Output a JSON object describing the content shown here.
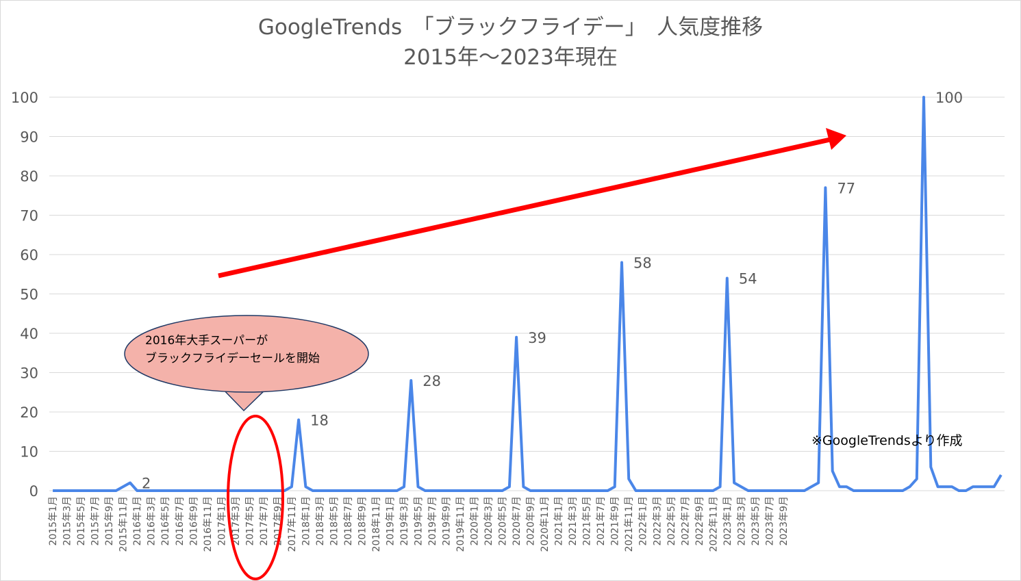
{
  "chart_data": {
    "type": "line",
    "title": "GoogleTrends　「ブラックフライデー」　人気度推移",
    "subtitle": "2015年〜2023年現在",
    "xlabel": "",
    "ylabel": "",
    "ylim": [
      0,
      100
    ],
    "y_ticks": [
      "0",
      "10",
      "20",
      "30",
      "40",
      "50",
      "60",
      "70",
      "80",
      "90",
      "100"
    ],
    "grid": true,
    "legend": "none",
    "x_tick_labels": [
      "2015年1月",
      "2015年3月",
      "2015年5月",
      "2015年7月",
      "2015年9月",
      "2015年11月",
      "2016年1月",
      "2016年3月",
      "2016年5月",
      "2016年7月",
      "2016年9月",
      "2016年11月",
      "2017年1月",
      "2017年3月",
      "2017年5月",
      "2017年7月",
      "2017年9月",
      "2017年11月",
      "2018年1月",
      "2018年3月",
      "2018年5月",
      "2018年7月",
      "2018年9月",
      "2018年11月",
      "2019年1月",
      "2019年3月",
      "2019年5月",
      "2019年7月",
      "2019年9月",
      "2019年11月",
      "2020年1月",
      "2020年3月",
      "2020年5月",
      "2020年7月",
      "2020年9月",
      "2020年11月",
      "2021年1月",
      "2021年3月",
      "2021年5月",
      "2021年7月",
      "2021年9月",
      "2021年11月",
      "2022年1月",
      "2022年3月",
      "2022年5月",
      "2022年7月",
      "2022年9月",
      "2022年11月",
      "2023年1月",
      "2023年3月",
      "2023年5月",
      "2023年7月",
      "2023年9月"
    ],
    "series": [
      {
        "values": [
          0,
          0,
          0,
          0,
          0,
          0,
          0,
          0,
          0,
          0,
          1,
          2,
          0,
          0,
          0,
          0,
          0,
          0,
          0,
          0,
          0,
          0,
          0,
          0,
          0,
          0,
          0,
          0,
          0,
          0,
          0,
          0,
          0,
          0,
          1,
          18,
          1,
          0,
          0,
          0,
          0,
          0,
          0,
          0,
          0,
          0,
          0,
          0,
          0,
          0,
          1,
          28,
          1,
          0,
          0,
          0,
          0,
          0,
          0,
          0,
          0,
          0,
          0,
          0,
          0,
          1,
          39,
          1,
          0,
          0,
          0,
          0,
          0,
          0,
          0,
          0,
          0,
          0,
          0,
          0,
          1,
          58,
          3,
          0,
          0,
          0,
          0,
          0,
          0,
          0,
          0,
          0,
          0,
          0,
          0,
          1,
          54,
          2,
          1,
          0,
          0,
          0,
          0,
          0,
          0,
          0,
          0,
          0,
          1,
          2,
          77,
          5,
          1,
          1,
          0,
          0,
          0,
          0,
          0,
          0,
          0,
          0,
          1,
          3,
          100,
          6,
          1,
          1,
          1,
          0,
          0,
          1,
          1,
          1,
          1,
          4
        ],
        "color": "#4a86e8"
      }
    ],
    "data_labels": [
      {
        "index": 11,
        "text": "2"
      },
      {
        "index": 35,
        "text": "18"
      },
      {
        "index": 51,
        "text": "28"
      },
      {
        "index": 66,
        "text": "39"
      },
      {
        "index": 81,
        "text": "58"
      },
      {
        "index": 96,
        "text": "54"
      },
      {
        "index": 110,
        "text": "77"
      },
      {
        "index": 124,
        "text": "100"
      }
    ],
    "callout_text": [
      "2016年大手スーパーが",
      "ブラックフライデーセールを開始"
    ],
    "note": "※GoogleTrendsより作成",
    "colors": {
      "series": "#4a86e8",
      "arrow": "#ff0000",
      "highlight_ellipse": "#ff0000",
      "callout_fill": "#f4b2aa",
      "callout_stroke": "#1f3864",
      "text": "#595959",
      "grid": "#d9d9d9"
    }
  }
}
